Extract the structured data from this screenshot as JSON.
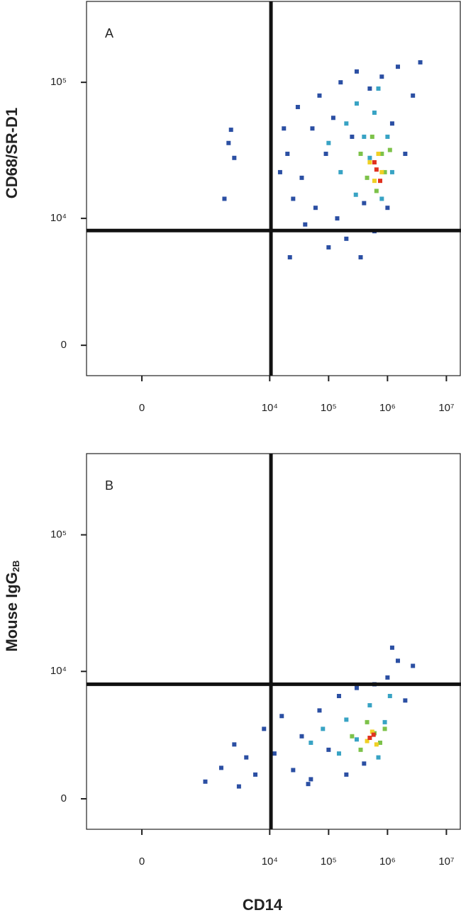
{
  "chart_data": [
    {
      "type": "scatter",
      "panel_label": "A",
      "ylabel": "CD68/SR-D1",
      "xlim": [
        -580,
        17700000
      ],
      "ylim": [
        -1280,
        390000
      ],
      "xticks": [
        0,
        {
          "value": 10000,
          "label": "10⁴"
        },
        {
          "value": 100000,
          "label": "10⁵"
        },
        {
          "value": 1000000,
          "label": "10⁶"
        },
        {
          "value": 10000000,
          "label": "10⁷"
        }
      ],
      "yticks": [
        0,
        {
          "value": 10000,
          "label": "10⁴"
        },
        {
          "value": 100000,
          "label": "10⁵"
        }
      ],
      "gates": {
        "x": 10500,
        "y": 8100
      },
      "series": [
        {
          "color": "#2b4fa3",
          "x": [
            17400,
            20000,
            25000,
            30000,
            35000,
            40000,
            53000,
            60000,
            70000,
            90000,
            100000,
            120000,
            140000,
            160000,
            200000,
            250000,
            300000,
            350000,
            400000,
            500000,
            600000,
            800000,
            1000000,
            1200000,
            1500000,
            2000000,
            2700000,
            3600000,
            15000,
            22000,
            1700,
            2000,
            2500,
            2200
          ],
          "y": [
            46000,
            30000,
            14000,
            66000,
            20000,
            9000,
            46000,
            12000,
            80000,
            30000,
            6000,
            55000,
            10000,
            100000,
            7000,
            40000,
            120000,
            5000,
            13000,
            90000,
            8000,
            110000,
            12000,
            50000,
            130000,
            30000,
            80000,
            140000,
            22000,
            5000,
            14000,
            36000,
            28000,
            45000
          ]
        },
        {
          "color": "#38a3c4",
          "x": [
            100000,
            160000,
            200000,
            290000,
            300000,
            400000,
            500000,
            600000,
            800000,
            1000000,
            1200000,
            700000
          ],
          "y": [
            36000,
            22000,
            50000,
            15000,
            70000,
            40000,
            28000,
            60000,
            14000,
            40000,
            22000,
            90000
          ]
        },
        {
          "color": "#7dc24a",
          "x": [
            350000,
            450000,
            550000,
            650000,
            800000,
            900000,
            1100000
          ],
          "y": [
            30000,
            20000,
            40000,
            16000,
            30000,
            22000,
            32000
          ]
        },
        {
          "color": "#f0d024",
          "x": [
            500000,
            600000,
            700000,
            800000
          ],
          "y": [
            26000,
            19000,
            30000,
            22000
          ]
        },
        {
          "color": "#e0321f",
          "x": [
            650000,
            750000,
            600000
          ],
          "y": [
            23000,
            19000,
            26000
          ]
        }
      ]
    },
    {
      "type": "scatter",
      "panel_label": "B",
      "ylabel": "Mouse IgG",
      "ylabel_sub": "2B",
      "xlabel": "CD14",
      "xlim": [
        -580,
        17700000
      ],
      "ylim": [
        -1280,
        390000
      ],
      "xticks": [
        0,
        {
          "value": 10000,
          "label": "10⁴"
        },
        {
          "value": 100000,
          "label": "10⁵"
        },
        {
          "value": 1000000,
          "label": "10⁶"
        },
        {
          "value": 10000000,
          "label": "10⁷"
        }
      ],
      "yticks": [
        0,
        {
          "value": 10000,
          "label": "10⁴"
        },
        {
          "value": 100000,
          "label": "10⁵"
        }
      ],
      "gates": {
        "x": 10500,
        "y": 8000
      },
      "series": [
        {
          "color": "#2b4fa3",
          "x": [
            800,
            1500,
            2500,
            4000,
            5700,
            8000,
            12000,
            16000,
            25000,
            35000,
            50000,
            70000,
            100000,
            150000,
            200000,
            300000,
            400000,
            1000000,
            1500000,
            2000000,
            1200000,
            2700000,
            600000,
            3000,
            45000
          ],
          "y": [
            700,
            1300,
            2500,
            1800,
            1000,
            3500,
            2000,
            4500,
            1200,
            3000,
            800,
            5000,
            2200,
            6500,
            1000,
            7500,
            1500,
            9000,
            12000,
            6000,
            15000,
            11000,
            8000,
            500,
            600
          ]
        },
        {
          "color": "#38a3c4",
          "x": [
            50000,
            80000,
            150000,
            200000,
            300000,
            500000,
            700000,
            900000,
            1100000
          ],
          "y": [
            2600,
            3500,
            2000,
            4200,
            2800,
            5500,
            1800,
            4000,
            6500
          ]
        },
        {
          "color": "#7dc24a",
          "x": [
            250000,
            350000,
            450000,
            600000,
            750000,
            900000
          ],
          "y": [
            3000,
            2200,
            4000,
            3200,
            2600,
            3500
          ]
        },
        {
          "color": "#f0d024",
          "x": [
            450000,
            550000,
            650000
          ],
          "y": [
            2700,
            3300,
            2500
          ]
        },
        {
          "color": "#e0321f",
          "x": [
            500000,
            580000
          ],
          "y": [
            2900,
            3100
          ]
        }
      ]
    }
  ]
}
